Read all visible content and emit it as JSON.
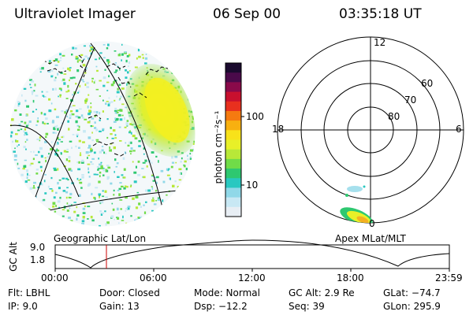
{
  "header": {
    "title": "Ultraviolet Imager",
    "date": "06 Sep 00",
    "time": "03:35:18 UT"
  },
  "colorbar": {
    "unit_label": "photon cm⁻²s⁻¹",
    "ticks": [
      "100",
      "10"
    ],
    "colors": [
      "#1a0a2e",
      "#4a0a4a",
      "#8a0a4a",
      "#c8102e",
      "#e8301e",
      "#f57a10",
      "#f8b010",
      "#f8e21a",
      "#e8f028",
      "#b8e838",
      "#70dc48",
      "#2ec870",
      "#28c8c0",
      "#90d8e8",
      "#c8e8f4",
      "#e8eef4"
    ]
  },
  "left_panel": {
    "caption": "Geographic Lat/Lon"
  },
  "right_panel": {
    "caption": "Apex MLat/MLT",
    "mlt_labels": {
      "top": "12",
      "left": "18",
      "right": "6",
      "bottom": "0"
    },
    "lat_labels": [
      "60",
      "70",
      "80"
    ]
  },
  "orbit": {
    "ylabel": "GC Alt",
    "yticks": [
      "9.0",
      "1.8"
    ],
    "xticks": [
      "00:00",
      "06:00",
      "12:00",
      "18:00",
      "23:59"
    ],
    "marker_color": "#cc0000"
  },
  "status": {
    "row1": {
      "filter": "Flt: LBHL",
      "door": "Door: Closed",
      "mode": "Mode: Normal",
      "gc_alt": "GC Alt: 2.9 Re",
      "glat": "GLat: −74.7"
    },
    "row2": {
      "ip": "IP: 9.0",
      "gain": "Gain: 13",
      "dsp": "Dsp:  −12.2",
      "seq": "Seq: 39",
      "glon": "GLon: 295.9"
    }
  }
}
